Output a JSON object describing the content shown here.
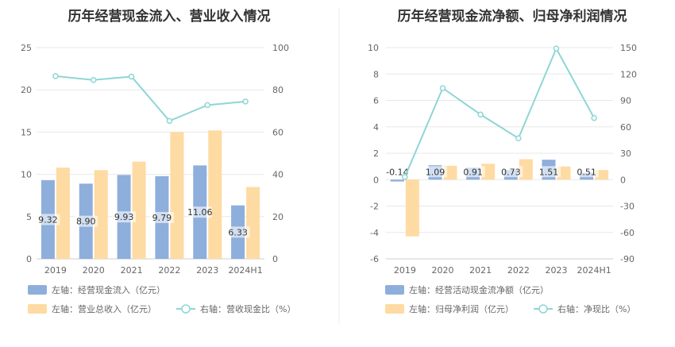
{
  "chart_data": [
    {
      "type": "bar",
      "title": "历年经营现金流入、营业收入情况",
      "categories": [
        "2019",
        "2020",
        "2021",
        "2022",
        "2023",
        "2024H1"
      ],
      "left_axis": {
        "ylim": [
          0,
          25
        ],
        "ticks": [
          "0",
          "5",
          "10",
          "15",
          "20",
          "25"
        ]
      },
      "right_axis": {
        "ylim": [
          0,
          100
        ],
        "ticks": [
          "0",
          "20",
          "40",
          "60",
          "80",
          "100"
        ]
      },
      "series": [
        {
          "name": "左轴：经营现金流入（亿元）",
          "kind": "bar",
          "axis": "left",
          "color": "#8eaedc",
          "values": [
            9.32,
            8.9,
            9.93,
            9.79,
            11.06,
            6.33
          ],
          "labels": [
            "9.32",
            "8.90",
            "9.93",
            "9.79",
            "11.06",
            "6.33"
          ]
        },
        {
          "name": "左轴：营业总收入（亿元）",
          "kind": "bar",
          "axis": "left",
          "color": "#fedba3",
          "values": [
            10.8,
            10.5,
            11.5,
            15.0,
            15.2,
            8.5
          ]
        },
        {
          "name": "右轴：营收现金比（%）",
          "kind": "line",
          "axis": "right",
          "color": "#8fd6d6",
          "values": [
            86.5,
            84.7,
            86.3,
            65.3,
            72.8,
            74.5
          ]
        }
      ],
      "legend": "bottom-left",
      "grid": true
    },
    {
      "type": "bar",
      "title": "历年经营现金流净额、归母净利润情况",
      "categories": [
        "2019",
        "2020",
        "2021",
        "2022",
        "2023",
        "2024H1"
      ],
      "left_axis": {
        "ylim": [
          -6,
          10
        ],
        "ticks": [
          "-6",
          "-4",
          "-2",
          "0",
          "2",
          "4",
          "6",
          "8",
          "10"
        ]
      },
      "right_axis": {
        "ylim": [
          -90,
          150
        ],
        "ticks": [
          "-90",
          "-60",
          "-30",
          "0",
          "30",
          "60",
          "90",
          "120",
          "150"
        ]
      },
      "series": [
        {
          "name": "左轴：经营活动现金流净额（亿元）",
          "kind": "bar",
          "axis": "left",
          "color": "#8eaedc",
          "values": [
            -0.14,
            1.09,
            0.91,
            0.73,
            1.51,
            0.51
          ],
          "labels": [
            "-0.14",
            "1.09",
            "0.91",
            "0.73",
            "1.51",
            "0.51"
          ]
        },
        {
          "name": "左轴：归母净利润（亿元）",
          "kind": "bar",
          "axis": "left",
          "color": "#fedba3",
          "values": [
            -4.3,
            1.05,
            1.2,
            1.55,
            1.0,
            0.73
          ]
        },
        {
          "name": "右轴：净现比（%）",
          "kind": "line",
          "axis": "right",
          "color": "#8fd6d6",
          "values": [
            3,
            104,
            74,
            47,
            149,
            70
          ]
        }
      ],
      "legend": "bottom-left",
      "grid": true
    }
  ]
}
